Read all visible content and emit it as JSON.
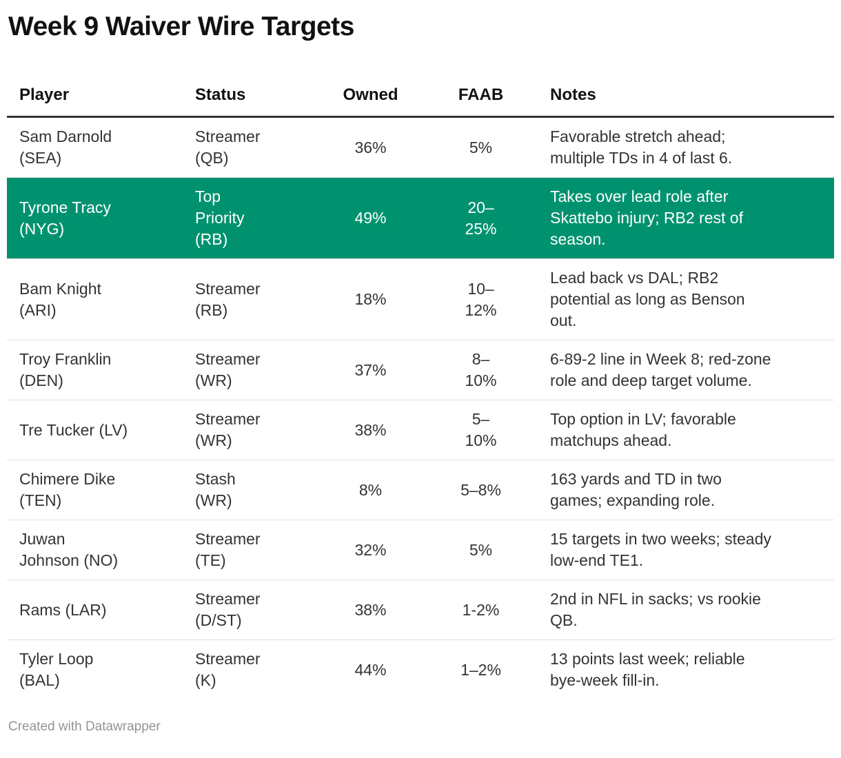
{
  "chart_data": {
    "type": "table",
    "title": "Week 9 Waiver Wire Targets",
    "columns": [
      "Player",
      "Status",
      "Owned",
      "FAAB",
      "Notes"
    ],
    "rows": [
      {
        "player": "Sam Darnold\n(SEA)",
        "status": "Streamer\n(QB)",
        "owned": "36%",
        "faab": "5%",
        "notes": "Favorable stretch ahead;\nmultiple TDs in 4 of last 6.",
        "highlight": false
      },
      {
        "player": "Tyrone Tracy\n(NYG)",
        "status": "Top\nPriority\n(RB)",
        "owned": "49%",
        "faab": "20–\n25%",
        "notes": "Takes over lead role after\nSkattebo injury; RB2 rest of\nseason.",
        "highlight": true
      },
      {
        "player": "Bam Knight\n(ARI)",
        "status": "Streamer\n(RB)",
        "owned": "18%",
        "faab": "10–\n12%",
        "notes": "Lead back vs DAL; RB2\npotential as long as Benson\nout.",
        "highlight": false
      },
      {
        "player": "Troy Franklin\n(DEN)",
        "status": "Streamer\n(WR)",
        "owned": "37%",
        "faab": "8–\n10%",
        "notes": "6-89-2 line in Week 8; red-zone\nrole and deep target volume.",
        "highlight": false
      },
      {
        "player": "Tre Tucker (LV)",
        "status": "Streamer\n(WR)",
        "owned": "38%",
        "faab": "5–\n10%",
        "notes": "Top option in LV; favorable\nmatchups ahead.",
        "highlight": false
      },
      {
        "player": "Chimere Dike\n(TEN)",
        "status": "Stash\n(WR)",
        "owned": "8%",
        "faab": "5–8%",
        "notes": "163 yards and TD in two\ngames; expanding role.",
        "highlight": false
      },
      {
        "player": "Juwan\nJohnson (NO)",
        "status": "Streamer\n(TE)",
        "owned": "32%",
        "faab": "5%",
        "notes": "15 targets in two weeks; steady\nlow-end TE1.",
        "highlight": false
      },
      {
        "player": "Rams (LAR)",
        "status": "Streamer\n(D/ST)",
        "owned": "38%",
        "faab": "1-2%",
        "notes": "2nd in NFL in sacks; vs rookie\nQB.",
        "highlight": false
      },
      {
        "player": "Tyler Loop\n(BAL)",
        "status": "Streamer\n(K)",
        "owned": "44%",
        "faab": "1–2%",
        "notes": "13 points last week; reliable\nbye-week fill-in.",
        "highlight": false
      }
    ]
  },
  "footer": {
    "credit": "Created with Datawrapper"
  },
  "colors": {
    "highlight_bg": "#00926f",
    "highlight_text": "#ffffff",
    "header_rule": "#333333",
    "row_divider": "#e0e0e0",
    "title_text": "#111111",
    "body_text": "#333333",
    "credit_text": "#949494"
  }
}
